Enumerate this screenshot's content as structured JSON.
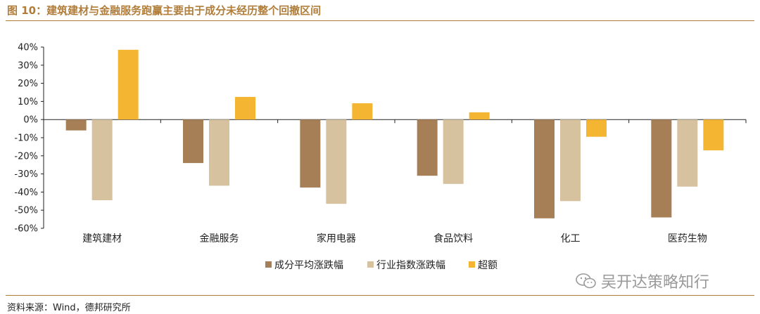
{
  "header": {
    "title": "图 10：建筑建材与金融服务跑赢主要由于成分未经历整个回撤区间"
  },
  "footer": {
    "source": "资料来源：Wind，德邦研究所"
  },
  "watermark": {
    "text": "吴开达策略知行",
    "icon": "wechat-icon"
  },
  "chart_data": {
    "type": "bar",
    "categories": [
      "建筑建材",
      "金融服务",
      "家用电器",
      "食品饮料",
      "化工",
      "医药生物"
    ],
    "series": [
      {
        "name": "成分平均涨跌幅",
        "color": "#a67f57",
        "values": [
          -6,
          -24,
          -37.5,
          -31,
          -54.5,
          -54
        ]
      },
      {
        "name": "行业指数涨跌幅",
        "color": "#d6c29f",
        "values": [
          -44.5,
          -36.5,
          -46.5,
          -35.5,
          -45,
          -37
        ]
      },
      {
        "name": "超额",
        "color": "#f4b632",
        "values": [
          38.5,
          12.5,
          9,
          4,
          -9.5,
          -17
        ]
      }
    ],
    "ylim": [
      -60,
      40
    ],
    "yticks": [
      40,
      30,
      20,
      10,
      0,
      -10,
      -20,
      -30,
      -40,
      -50,
      -60
    ],
    "ytick_labels": [
      "40%",
      "30%",
      "20%",
      "10%",
      "0%",
      "-10%",
      "-20%",
      "-30%",
      "-40%",
      "-50%",
      "-60%"
    ],
    "legend_position": "bottom-center",
    "grid": false
  }
}
